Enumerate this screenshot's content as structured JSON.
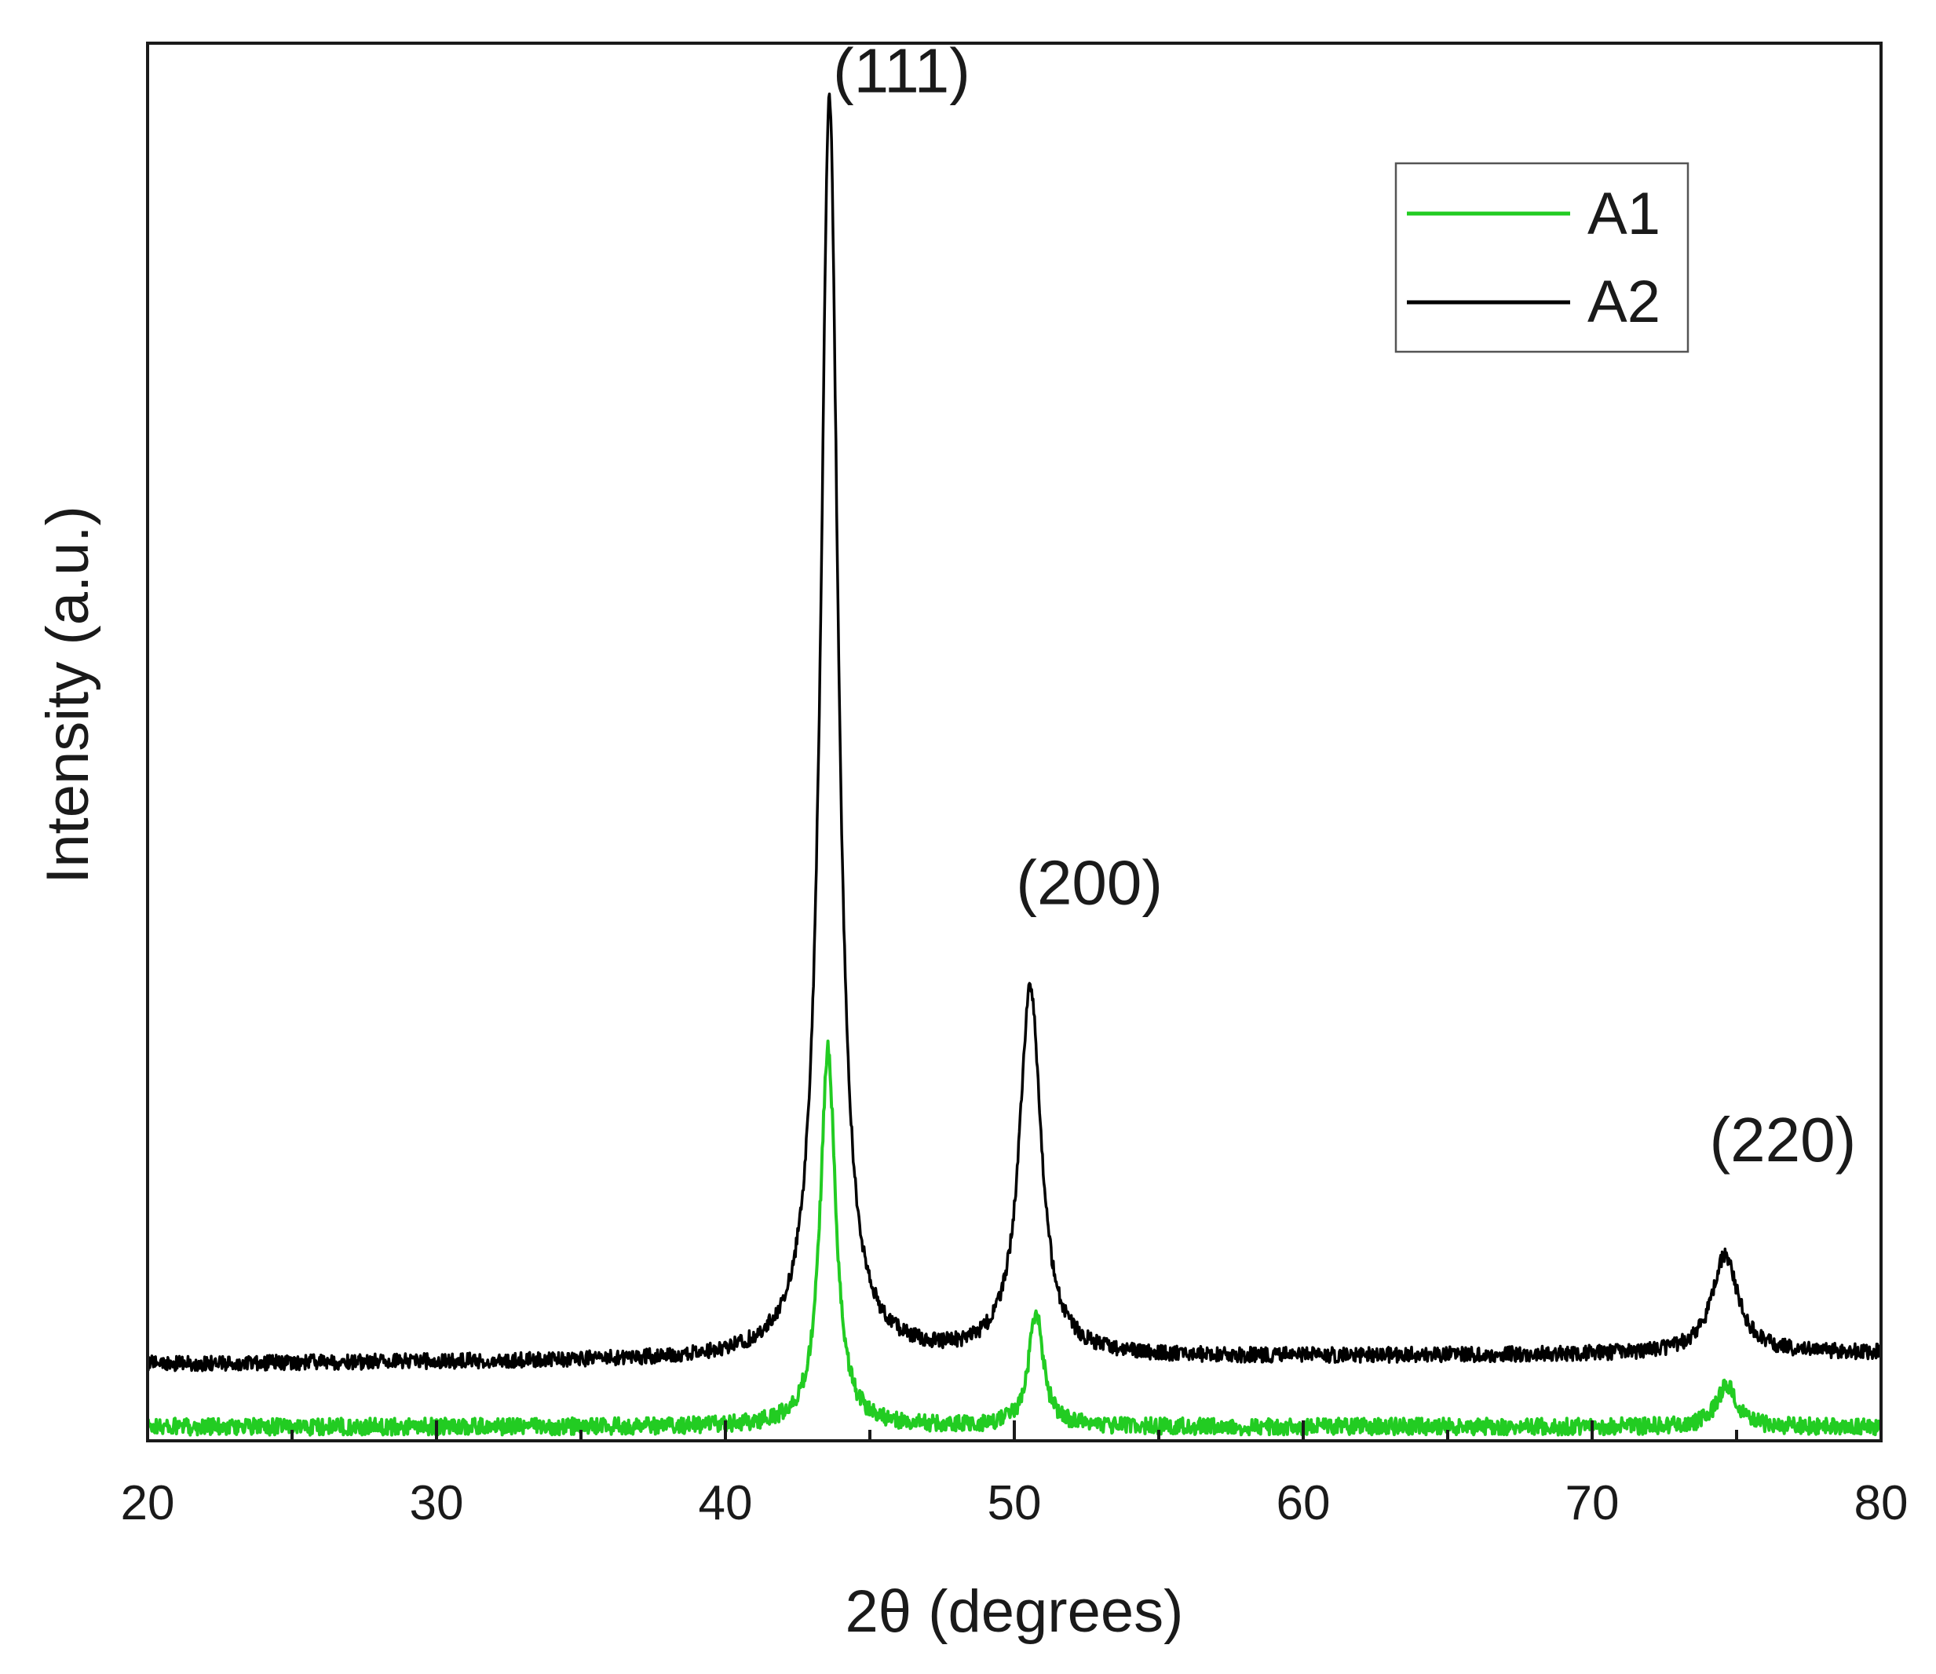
{
  "chart_data": {
    "type": "line",
    "xlabel": "2θ (degrees)",
    "ylabel": "Intensity (a.u.)",
    "xlim": [
      20,
      80
    ],
    "ylim": [
      0,
      100
    ],
    "x_ticks": [
      "20",
      "30",
      "40",
      "50",
      "60",
      "70",
      "80"
    ],
    "x_minor_step": 5,
    "y_tick_labels": "none",
    "grid": false,
    "legend_position": "top-right",
    "legend_frame": true,
    "series": [
      {
        "name": "A1",
        "color": "#22cc22",
        "baseline": 1.0,
        "noise": 0.6,
        "peaks": [
          {
            "x": 43.55,
            "height": 27,
            "width": 0.32
          },
          {
            "x": 50.75,
            "height": 8.2,
            "width": 0.3
          },
          {
            "x": 74.65,
            "height": 3.0,
            "width": 0.4
          }
        ]
      },
      {
        "name": "A2",
        "color": "#000000",
        "baseline": 5.5,
        "baseline_end": 6.3,
        "noise": 0.55,
        "peaks": [
          {
            "x": 43.6,
            "height": 90.5,
            "width": 0.36
          },
          {
            "x": 50.55,
            "height": 26.5,
            "width": 0.45
          },
          {
            "x": 74.6,
            "height": 7.0,
            "width": 0.55
          }
        ]
      }
    ],
    "annotations": [
      {
        "text": "(111)",
        "x": 46.1,
        "y": 96.5
      },
      {
        "text": "(200)",
        "x": 52.6,
        "y": 38.4
      },
      {
        "text": "(220)",
        "x": 76.6,
        "y": 20.0
      }
    ]
  }
}
